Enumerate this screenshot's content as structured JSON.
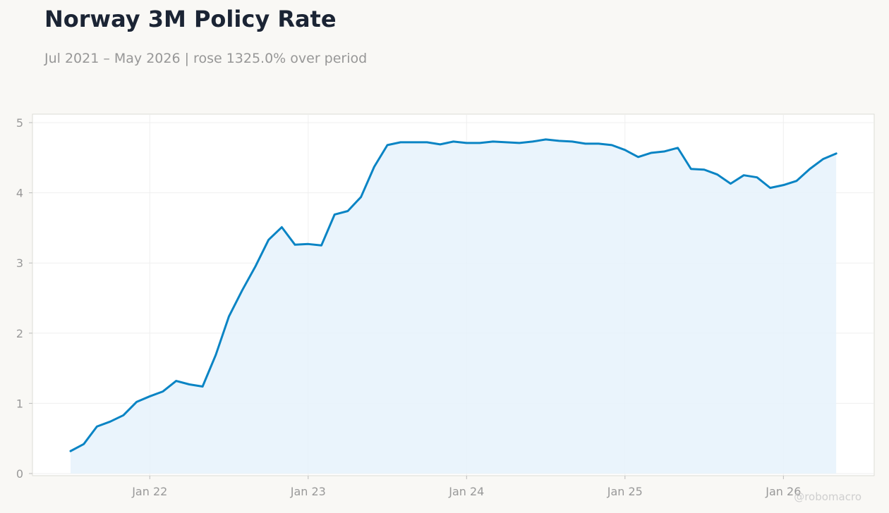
{
  "title": "Norway 3M Policy Rate",
  "subtitle": "Jul 2021 – May 2026 | rose 1325.0% over period",
  "watermark": "@robomacro",
  "colors": {
    "line": "#0a84c4",
    "fill": "#e6f2fb",
    "background": "#f9f8f5",
    "plot_background": "#ffffff"
  },
  "chart_data": {
    "type": "area",
    "title": "Norway 3M Policy Rate",
    "subtitle": "Jul 2021 – May 2026 | rose 1325.0% over period",
    "xlabel": "",
    "ylabel": "",
    "ylim": [
      0,
      5
    ],
    "yticks": [
      0,
      1,
      2,
      3,
      4,
      5
    ],
    "xticks": [
      {
        "label": "Jan 22",
        "date": "2022-01"
      },
      {
        "label": "Jan 23",
        "date": "2023-01"
      },
      {
        "label": "Jan 24",
        "date": "2024-01"
      },
      {
        "label": "Jan 25",
        "date": "2025-01"
      },
      {
        "label": "Jan 26",
        "date": "2026-01"
      }
    ],
    "grid": true,
    "legend": "none",
    "x": [
      "2021-07",
      "2021-08",
      "2021-09",
      "2021-10",
      "2021-11",
      "2021-12",
      "2022-01",
      "2022-02",
      "2022-03",
      "2022-04",
      "2022-05",
      "2022-06",
      "2022-07",
      "2022-08",
      "2022-09",
      "2022-10",
      "2022-11",
      "2022-12",
      "2023-01",
      "2023-02",
      "2023-03",
      "2023-04",
      "2023-05",
      "2023-06",
      "2023-07",
      "2023-08",
      "2023-09",
      "2023-10",
      "2023-11",
      "2023-12",
      "2024-01",
      "2024-02",
      "2024-03",
      "2024-04",
      "2024-05",
      "2024-06",
      "2024-07",
      "2024-08",
      "2024-09",
      "2024-10",
      "2024-11",
      "2024-12",
      "2025-01",
      "2025-02",
      "2025-03",
      "2025-04",
      "2025-05",
      "2025-06",
      "2025-07",
      "2025-08",
      "2025-09",
      "2025-10",
      "2025-11",
      "2025-12",
      "2026-01",
      "2026-02",
      "2026-03",
      "2026-04",
      "2026-05"
    ],
    "series": [
      {
        "values": [
          0.32,
          0.42,
          0.67,
          0.74,
          0.83,
          1.02,
          1.1,
          1.17,
          1.32,
          1.27,
          1.24,
          1.69,
          2.24,
          2.61,
          2.95,
          3.33,
          3.51,
          3.26,
          3.27,
          3.25,
          3.69,
          3.74,
          3.94,
          4.37,
          4.68,
          4.72,
          4.72,
          4.72,
          4.69,
          4.73,
          4.71,
          4.71,
          4.73,
          4.72,
          4.71,
          4.73,
          4.76,
          4.74,
          4.73,
          4.7,
          4.7,
          4.68,
          4.61,
          4.51,
          4.57,
          4.59,
          4.64,
          4.34,
          4.33,
          4.26,
          4.13,
          4.25,
          4.22,
          4.07,
          4.11,
          4.17,
          4.34,
          4.48,
          4.56
        ]
      }
    ]
  }
}
